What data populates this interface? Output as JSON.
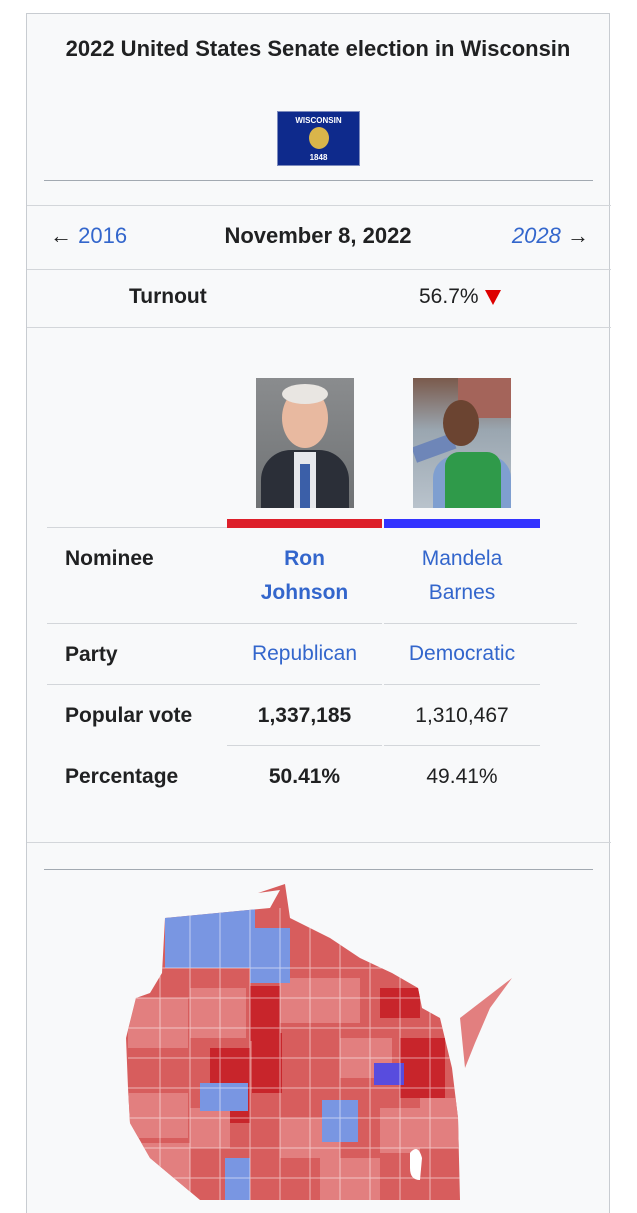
{
  "infobox": {
    "title": "2022 United States Senate election in Wisconsin",
    "flag": {
      "name": "WISCONSIN",
      "year": "1848",
      "icon": "wisconsin-flag"
    },
    "nav": {
      "prev": "2016",
      "date": "November 8, 2022",
      "next": "2028",
      "prev_arrow": "←",
      "next_arrow": "→"
    },
    "turnout": {
      "label": "Turnout",
      "value": "56.7%",
      "trend": "decrease"
    },
    "candidates": [
      {
        "name_line1": "Ron",
        "name_line2": "Johnson",
        "party": "Republican",
        "votes": "1,337,185",
        "percentage": "50.41%",
        "color": "#dd1f2a",
        "winner": true
      },
      {
        "name_line1": "Mandela",
        "name_line2": "Barnes",
        "party": "Democratic",
        "votes": "1,310,467",
        "percentage": "49.41%",
        "color": "#3333ff",
        "winner": false
      }
    ],
    "rows": {
      "nominee": "Nominee",
      "party": "Party",
      "popular_vote": "Popular vote",
      "percentage": "Percentage"
    },
    "map": {
      "icon": "county-results-map",
      "colors": {
        "rep_dark": "#c8252b",
        "rep_mid": "#d75d5d",
        "rep_light": "#e27f7f",
        "dem_mid": "#7996e2",
        "dem_dark": "#584cde"
      }
    }
  }
}
